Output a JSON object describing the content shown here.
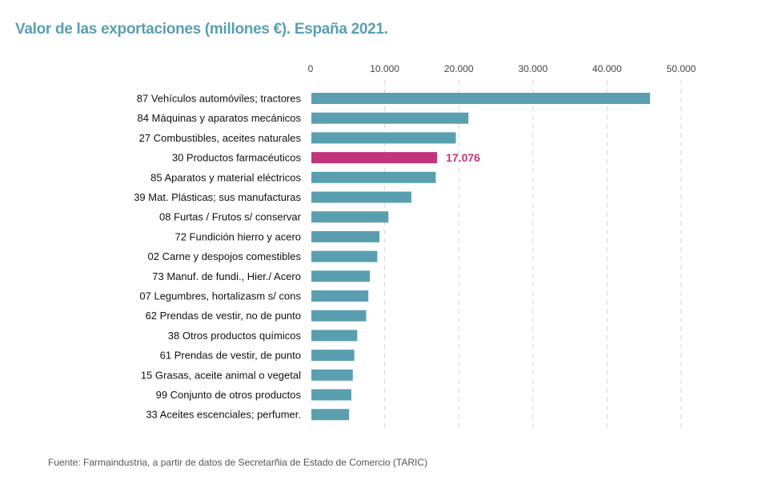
{
  "colors": {
    "title": "#5a9fb0",
    "bar": "#5a9fb0",
    "highlight": "#c0357c"
  },
  "source": "Fuente: Farmaindustria, a partir de datos de Secretarñia de Estado de Comercio (TARIC)",
  "chart_data": {
    "type": "bar",
    "orientation": "horizontal",
    "title": "Valor de las exportaciones (millones €). España 2021.",
    "xlim": [
      0,
      50000
    ],
    "xticks": [
      0,
      10000,
      20000,
      30000,
      40000,
      50000
    ],
    "xtick_labels": [
      "0",
      "10.000",
      "20.000",
      "30.000",
      "40.000",
      "50.000"
    ],
    "grid": true,
    "highlight_index": 3,
    "categories": [
      "87 Vehículos automóviles; tractores",
      "84 Máquinas y aparatos mecánicos",
      "27 Combustibles, aceites naturales",
      "30 Productos farmacéuticos",
      "85 Aparatos y material eléctricos",
      "39 Mat. Plásticas; sus manufacturas",
      "08 Furtas / Frutos s/ conservar",
      "72 Fundición hierro y acero",
      "02 Carne y despojos comestibles",
      "73 Manuf. de fundi., Hier./ Acero",
      "07 Legumbres, hortalizasm s/ cons",
      "62 Prendas de vestir, no de punto",
      "38 Otros productos químicos",
      "61 Prendas de vestir, de punto",
      "15 Grasas, aceite animal o vegetal",
      "99 Conjunto de otros productos",
      "33 Aceites escenciales; perfumer."
    ],
    "values": [
      45800,
      21300,
      19600,
      17076,
      16900,
      13600,
      10500,
      9300,
      9000,
      8000,
      7800,
      7500,
      6300,
      5900,
      5700,
      5500,
      5200
    ],
    "data_labels": [
      "",
      "",
      "",
      "17.076",
      "",
      "",
      "",
      "",
      "",
      "",
      "",
      "",
      "",
      "",
      "",
      "",
      ""
    ]
  }
}
